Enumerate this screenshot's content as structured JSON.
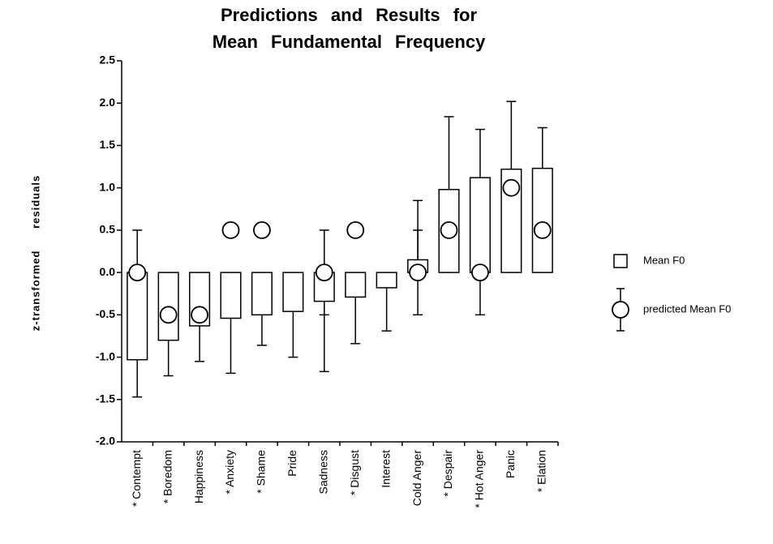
{
  "chart_data": {
    "type": "bar",
    "title": [
      "Predictions and Results for",
      "Mean Fundamental Frequency"
    ],
    "y_label": "z-transformed residuals",
    "categories": [
      "* Contempt",
      "* Boredom",
      "Happiness",
      "* Anxiety",
      "* Shame",
      "Pride",
      "Sadness",
      "* Disgust",
      "Interest",
      "Cold Anger",
      "* Despair",
      "* Hot Anger",
      "Panic",
      "* Elation"
    ],
    "series": [
      {
        "name": "Mean F0",
        "mark": "bar",
        "color": "#ffffff",
        "values": [
          -1.03,
          -0.8,
          -0.63,
          -0.54,
          -0.5,
          -0.46,
          -0.34,
          -0.29,
          -0.18,
          0.15,
          0.98,
          1.12,
          1.22,
          1.23
        ],
        "errors": [
          0.44,
          0.42,
          0.42,
          0.65,
          0.36,
          0.54,
          0.83,
          0.55,
          0.51,
          0.7,
          0.86,
          0.57,
          0.8,
          0.48
        ]
      },
      {
        "name": "predicted Mean F0",
        "mark": "circle",
        "color": "#ffffff",
        "values": [
          0,
          -0.5,
          -0.5,
          0.5,
          0.5,
          null,
          0,
          0.5,
          null,
          0,
          0.5,
          0,
          1.0,
          0.5
        ],
        "errors": [
          0.5,
          null,
          null,
          null,
          null,
          null,
          0.5,
          null,
          null,
          0.5,
          null,
          0.5,
          null,
          null
        ]
      }
    ],
    "ylim": [
      -2.0,
      2.5
    ],
    "yticks": [
      {
        "value": -2.0,
        "label": "-2.0"
      },
      -1.5,
      {
        "value": -1.0,
        "label": "-1.0"
      },
      -0.5,
      {
        "value": 0,
        "label": "0.0"
      },
      0.5,
      {
        "value": 1.0,
        "label": "1.0"
      },
      1.5,
      {
        "value": 2.0,
        "label": "2.0"
      },
      2.5
    ],
    "grid": false
  }
}
